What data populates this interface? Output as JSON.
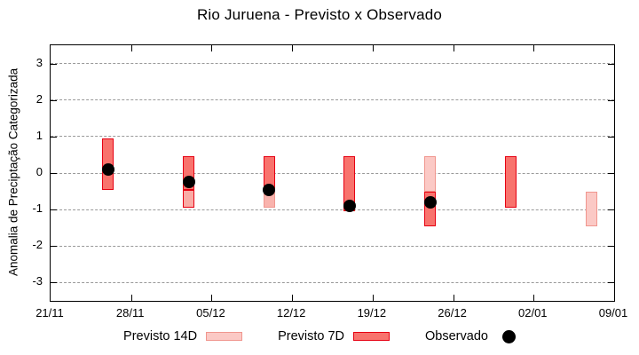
{
  "title": "Rio Juruena - Previsto x Observado",
  "chart_data": {
    "type": "bar",
    "subtype": "forecast-range-bars-with-observed-points",
    "title": "Rio Juruena - Previsto x Observado",
    "xlabel": "",
    "ylabel": "Anomalia de Preciptação Categorizada",
    "x_tick_labels": [
      "21/11",
      "28/11",
      "05/12",
      "12/12",
      "19/12",
      "26/12",
      "02/01",
      "09/01"
    ],
    "x_tick_days": [
      0,
      7,
      14,
      21,
      28,
      35,
      42,
      49
    ],
    "x_range_days": [
      0,
      49
    ],
    "y_ticks": [
      -3,
      -2,
      -1,
      0,
      1,
      2,
      3
    ],
    "ylim": [
      -3.5,
      3.5
    ],
    "grid": "horizontal dashed gray lines at each integer y tick",
    "legend_position": "centered below plot",
    "series": [
      {
        "name": "Previsto 14D",
        "type": "range-bar",
        "fill": "#fbc9c5",
        "border": "#f0968e"
      },
      {
        "name": "Previsto 7D",
        "type": "range-bar",
        "fill": "#f8736d",
        "border": "#e60012"
      },
      {
        "name": "Observado",
        "type": "point",
        "color": "#000000"
      }
    ],
    "bars": [
      {
        "date": "26/11",
        "day": 5,
        "observed": 0.1,
        "segments": [
          {
            "series": "7d",
            "low": -0.45,
            "high": 0.95
          }
        ]
      },
      {
        "date": "03/12",
        "day": 12,
        "observed": -0.25,
        "segments": [
          {
            "series": "7d",
            "low": -0.45,
            "high": 0.45
          },
          {
            "series": "14d",
            "low": -0.95,
            "high": -0.45,
            "fill": "#f9aba5",
            "border": "#e60012"
          }
        ]
      },
      {
        "date": "10/12",
        "day": 19,
        "observed": -0.45,
        "segments": [
          {
            "series": "7d",
            "low": -0.45,
            "high": 0.45
          },
          {
            "series": "14d",
            "low": -0.95,
            "high": -0.45,
            "fill": "#f9b3ad"
          }
        ]
      },
      {
        "date": "17/12",
        "day": 26,
        "observed": -0.9,
        "segments": [
          {
            "series": "7d",
            "low": -1.05,
            "high": 0.45
          }
        ]
      },
      {
        "date": "24/12",
        "day": 33,
        "observed": -0.8,
        "segments": [
          {
            "series": "14d",
            "low": -0.5,
            "high": 0.45
          },
          {
            "series": "7d",
            "low": -1.45,
            "high": -0.5
          }
        ]
      },
      {
        "date": "31/12",
        "day": 40,
        "observed": null,
        "segments": [
          {
            "series": "7d",
            "low": -0.95,
            "high": 0.45
          }
        ]
      },
      {
        "date": "07/01",
        "day": 47,
        "observed": null,
        "segments": [
          {
            "series": "14d",
            "low": -1.45,
            "high": -0.5
          }
        ]
      }
    ]
  },
  "legend": {
    "items": [
      {
        "label": "Previsto 14D",
        "swatch": "14d"
      },
      {
        "label": "Previsto 7D",
        "swatch": "7d"
      },
      {
        "label": "Observado",
        "swatch": "dot"
      }
    ]
  },
  "colors": {
    "background": "#ffffff",
    "axis": "#000000",
    "gridline": "#999999",
    "previsto_14d_fill": "#fbc9c5",
    "previsto_14d_border": "#f0968e",
    "previsto_7d_fill": "#f8736d",
    "previsto_7d_border": "#e60012",
    "observado": "#000000"
  }
}
